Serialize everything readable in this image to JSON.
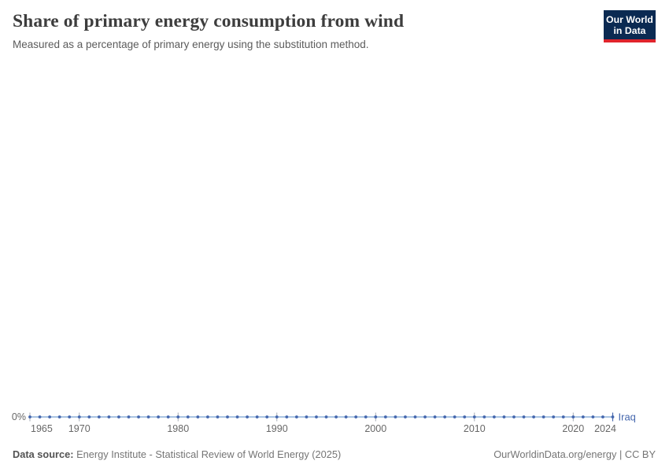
{
  "header": {
    "title": "Share of primary energy consumption from wind",
    "subtitle": "Measured as a percentage of primary energy using the substitution method.",
    "logo": {
      "line1": "Our World",
      "line2": "in Data",
      "bg_color": "#0b2a52",
      "accent_color": "#e0242c"
    }
  },
  "chart_data": {
    "type": "line",
    "title": "Share of primary energy consumption from wind",
    "subtitle": "Measured as a percentage of primary energy using the substitution method.",
    "grid": false,
    "legend_position": "end-of-line",
    "x_axis": {
      "range": [
        1965,
        2024
      ],
      "ticks": [
        1965,
        1970,
        1980,
        1990,
        2000,
        2010,
        2020,
        2024
      ]
    },
    "y_axis": {
      "tick_labels": [
        "0%"
      ],
      "unit": "%"
    },
    "series": [
      {
        "name": "Iraq",
        "color": "#4466ad",
        "line_color": "#a9c4e2",
        "x": [
          1965,
          1966,
          1967,
          1968,
          1969,
          1970,
          1971,
          1972,
          1973,
          1974,
          1975,
          1976,
          1977,
          1978,
          1979,
          1980,
          1981,
          1982,
          1983,
          1984,
          1985,
          1986,
          1987,
          1988,
          1989,
          1990,
          1991,
          1992,
          1993,
          1994,
          1995,
          1996,
          1997,
          1998,
          1999,
          2000,
          2001,
          2002,
          2003,
          2004,
          2005,
          2006,
          2007,
          2008,
          2009,
          2010,
          2011,
          2012,
          2013,
          2014,
          2015,
          2016,
          2017,
          2018,
          2019,
          2020,
          2021,
          2022,
          2023,
          2024
        ],
        "values": [
          0,
          0,
          0,
          0,
          0,
          0,
          0,
          0,
          0,
          0,
          0,
          0,
          0,
          0,
          0,
          0,
          0,
          0,
          0,
          0,
          0,
          0,
          0,
          0,
          0,
          0,
          0,
          0,
          0,
          0,
          0,
          0,
          0,
          0,
          0,
          0,
          0,
          0,
          0,
          0,
          0,
          0,
          0,
          0,
          0,
          0,
          0,
          0,
          0,
          0,
          0,
          0,
          0,
          0,
          0,
          0,
          0,
          0,
          0,
          0
        ]
      }
    ]
  },
  "footer": {
    "source_label": "Data source:",
    "source_text": " Energy Institute - Statistical Review of World Energy (2025)",
    "credit": "OurWorldinData.org/energy | CC BY"
  }
}
